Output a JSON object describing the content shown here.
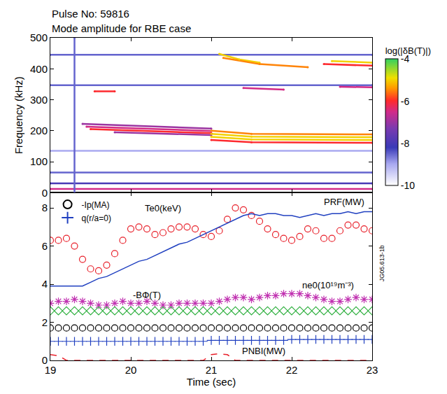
{
  "chart_data": [
    {
      "type": "spectrogram",
      "title": "Pulse No: 59816",
      "subtitle": "Mode amplitude for RBE case",
      "y_label": "Frequency (kHz)",
      "xlim": [
        19,
        23
      ],
      "xticks": [
        19,
        20,
        21,
        22,
        23
      ],
      "ylim": [
        0,
        500
      ],
      "yticks": [
        0,
        100,
        200,
        300,
        400,
        500
      ],
      "tick_labels": "y",
      "colorbar": {
        "title": "log(|δB(T)|)",
        "range": [
          -10,
          -4
        ],
        "ticks": [
          -4,
          -6,
          -8,
          -10
        ]
      },
      "modes": [
        {
          "x": [
            19.4,
            21.0
          ],
          "y": [
            222,
            207
          ],
          "value": -7
        },
        {
          "x": [
            19.45,
            21.0
          ],
          "y": [
            213,
            199
          ],
          "value": -6.5
        },
        {
          "x": [
            19.5,
            21.0
          ],
          "y": [
            205,
            192
          ],
          "value": -6
        },
        {
          "x": [
            19.8,
            21.0
          ],
          "y": [
            195,
            186
          ],
          "value": -7
        },
        {
          "x": [
            21.0,
            21.5,
            23.0
          ],
          "y": [
            200,
            190,
            188
          ],
          "value": -5.5
        },
        {
          "x": [
            21.0,
            21.5,
            23.0
          ],
          "y": [
            190,
            181,
            179
          ],
          "value": -5
        },
        {
          "x": [
            21.0,
            21.5,
            23.0
          ],
          "y": [
            180,
            172,
            170
          ],
          "value": -5
        },
        {
          "x": [
            21.0,
            21.5,
            23.0
          ],
          "y": [
            170,
            163,
            161
          ],
          "value": -6
        },
        {
          "x": [
            19.0,
            23.0
          ],
          "y": [
            445,
            445
          ],
          "value": -8.5
        },
        {
          "x": [
            21.1,
            21.35,
            21.6
          ],
          "y": [
            448,
            430,
            420
          ],
          "value": -5
        },
        {
          "x": [
            21.15,
            21.6,
            22.2
          ],
          "y": [
            435,
            415,
            405
          ],
          "value": -5.5
        },
        {
          "x": [
            22.5,
            23.0
          ],
          "y": [
            425,
            420
          ],
          "value": -5
        },
        {
          "x": [
            22.4,
            23.0
          ],
          "y": [
            415,
            410
          ],
          "value": -6
        },
        {
          "x": [
            19.0,
            23.0
          ],
          "y": [
            347,
            347
          ],
          "value": -8.5
        },
        {
          "x": [
            19.55,
            19.8
          ],
          "y": [
            327,
            327
          ],
          "value": -6
        },
        {
          "x": [
            21.4,
            21.9
          ],
          "y": [
            338,
            333
          ],
          "value": -6.5
        },
        {
          "x": [
            22.6,
            23.0
          ],
          "y": [
            342,
            340
          ],
          "value": -6.5
        },
        {
          "x": [
            19.0,
            23.0
          ],
          "y": [
            12,
            12
          ],
          "value": -6.5
        },
        {
          "x": [
            19.0,
            23.0
          ],
          "y": [
            30,
            30
          ],
          "value": -8
        },
        {
          "x": [
            19.0,
            23.0
          ],
          "y": [
            65,
            65
          ],
          "value": -8.5
        },
        {
          "x": [
            19.0,
            23.0
          ],
          "y": [
            135,
            135
          ],
          "value": -9
        },
        {
          "x": [
            19.3,
            19.3
          ],
          "y": [
            0,
            500
          ],
          "value": -8.5
        }
      ]
    },
    {
      "type": "line",
      "x_label": "Time (sec)",
      "xlim": [
        19,
        23
      ],
      "xticks": [
        19,
        20,
        21,
        22,
        23
      ],
      "ylim": [
        0,
        8.8
      ],
      "yticks": [
        0,
        2,
        4,
        6,
        8
      ],
      "legend": "upper left",
      "figure_id": "JG05.613-1b",
      "x": [
        19.0,
        19.1,
        19.2,
        19.3,
        19.4,
        19.5,
        19.6,
        19.7,
        19.8,
        19.9,
        20.0,
        20.1,
        20.2,
        20.3,
        20.4,
        20.5,
        20.6,
        20.7,
        20.8,
        20.9,
        21.0,
        21.1,
        21.2,
        21.3,
        21.4,
        21.5,
        21.6,
        21.7,
        21.8,
        21.9,
        22.0,
        22.1,
        22.2,
        22.3,
        22.4,
        22.5,
        22.6,
        22.7,
        22.8,
        22.9,
        23.0
      ],
      "series": [
        {
          "name": "Te0(keV)",
          "color": "#e8202a",
          "marker": "circle-open",
          "values": [
            6.3,
            6.3,
            6.4,
            6.0,
            5.3,
            4.8,
            4.7,
            5.0,
            5.6,
            6.3,
            6.9,
            7.0,
            6.9,
            6.6,
            6.7,
            6.9,
            7.0,
            7.0,
            6.9,
            6.6,
            6.5,
            6.8,
            7.4,
            8.0,
            7.9,
            7.6,
            7.3,
            6.9,
            6.6,
            6.4,
            6.3,
            6.5,
            6.9,
            6.8,
            6.4,
            6.4,
            6.8,
            7.1,
            7.1,
            6.9,
            6.8
          ]
        },
        {
          "name": "PRF(MW)",
          "color": "#2040c0",
          "line_style": "solid",
          "values": [
            3.9,
            3.9,
            3.9,
            3.9,
            3.9,
            4.1,
            4.3,
            4.4,
            4.6,
            4.8,
            5.0,
            5.2,
            5.3,
            5.5,
            5.7,
            5.9,
            6.1,
            6.2,
            6.4,
            6.6,
            6.8,
            7.0,
            7.2,
            7.4,
            7.6,
            7.7,
            7.6,
            7.7,
            7.7,
            7.6,
            7.6,
            7.5,
            7.6,
            7.7,
            7.6,
            7.7,
            7.7,
            7.8,
            7.7,
            7.8,
            7.8
          ]
        },
        {
          "name": "ne0(10¹⁹m⁻³)",
          "color": "#c030b0",
          "marker": "asterisk-open",
          "values": [
            3.0,
            3.1,
            3.1,
            3.2,
            3.1,
            3.0,
            2.9,
            2.9,
            3.0,
            3.1,
            3.0,
            3.0,
            3.1,
            3.0,
            2.9,
            2.9,
            3.0,
            3.0,
            3.0,
            3.0,
            3.0,
            3.1,
            3.2,
            3.3,
            3.3,
            3.2,
            3.3,
            3.4,
            3.4,
            3.5,
            3.5,
            3.5,
            3.4,
            3.3,
            3.2,
            3.1,
            3.1,
            3.2,
            3.3,
            3.2,
            3.2
          ]
        },
        {
          "name": "-BΦ(T)",
          "color": "#30b040",
          "marker": "diamond-open",
          "values": [
            2.6,
            2.6,
            2.6,
            2.6,
            2.6,
            2.6,
            2.6,
            2.6,
            2.6,
            2.6,
            2.6,
            2.6,
            2.6,
            2.6,
            2.6,
            2.6,
            2.6,
            2.6,
            2.6,
            2.6,
            2.6,
            2.6,
            2.6,
            2.6,
            2.6,
            2.6,
            2.6,
            2.6,
            2.6,
            2.6,
            2.6,
            2.6,
            2.6,
            2.6,
            2.6,
            2.6,
            2.6,
            2.6,
            2.6,
            2.6,
            2.6
          ]
        },
        {
          "name": "-Ip(MA)",
          "color": "#000000",
          "marker": "circle-open",
          "values": [
            1.7,
            1.7,
            1.7,
            1.7,
            1.7,
            1.7,
            1.7,
            1.7,
            1.7,
            1.7,
            1.7,
            1.7,
            1.7,
            1.7,
            1.7,
            1.7,
            1.7,
            1.7,
            1.7,
            1.7,
            1.7,
            1.7,
            1.7,
            1.7,
            1.7,
            1.7,
            1.7,
            1.7,
            1.7,
            1.7,
            1.7,
            1.7,
            1.7,
            1.7,
            1.7,
            1.7,
            1.7,
            1.7,
            1.7,
            1.7,
            1.7
          ]
        },
        {
          "name": "q(r/a=0)",
          "color": "#2040c0",
          "marker": "cross-thin-open",
          "values": [
            1.0,
            1.0,
            1.0,
            1.0,
            1.0,
            1.0,
            1.0,
            1.0,
            1.0,
            1.0,
            1.0,
            1.0,
            1.0,
            1.0,
            1.0,
            1.0,
            1.0,
            1.0,
            1.0,
            1.0,
            1.05,
            1.05,
            1.05,
            1.05,
            1.05,
            1.05,
            1.05,
            1.05,
            1.05,
            1.05,
            1.1,
            1.1,
            1.1,
            1.1,
            1.1,
            1.1,
            1.1,
            1.1,
            1.1,
            1.1,
            1.1
          ]
        },
        {
          "name": "PNBI(MW)",
          "color": "#e8202a",
          "line_style": "dash",
          "values": [
            0.3,
            0.25,
            0,
            0,
            0,
            0,
            0,
            0,
            0,
            0,
            0,
            0,
            0,
            0,
            0,
            0,
            0,
            0,
            0,
            0,
            0.3,
            0.35,
            0.3,
            0,
            0,
            0,
            0,
            0,
            0,
            0,
            0,
            0,
            0,
            0,
            0,
            0,
            0,
            0,
            0,
            0,
            0
          ]
        }
      ],
      "annotations": [
        {
          "text": "Te0(keV)",
          "x": 20.4,
          "y": 8.0
        },
        {
          "text": "PRF(MW)",
          "x": 22.65,
          "y": 8.3
        },
        {
          "text": "ne0(10¹⁹m⁻³)",
          "x": 22.45,
          "y": 3.95
        },
        {
          "text": "-BΦ(T)",
          "x": 20.2,
          "y": 3.45
        },
        {
          "text": "PNBI(MW)",
          "x": 21.65,
          "y": 0.5
        }
      ]
    }
  ]
}
